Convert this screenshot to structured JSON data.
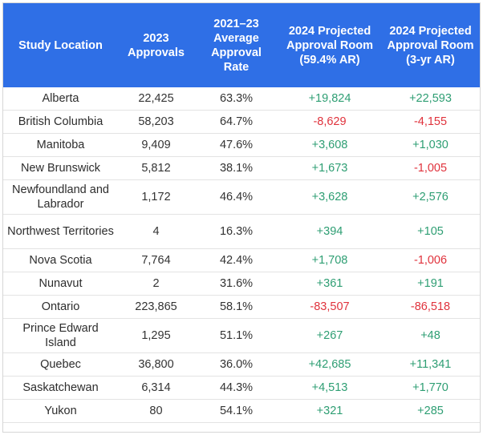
{
  "table": {
    "headers": [
      "Study Location",
      "2023 Approvals",
      "2021–23 Average Approval Rate",
      "2024 Projected Approval Room (59.4% AR)",
      "2024 Projected Approval Room (3-yr AR)"
    ],
    "rows": [
      {
        "location": "Alberta",
        "approvals": "22,425",
        "rate": "63.3%",
        "room_594": "+19,824",
        "room_3yr": "+22,593"
      },
      {
        "location": "British Columbia",
        "approvals": "58,203",
        "rate": "64.7%",
        "room_594": "-8,629",
        "room_3yr": "-4,155"
      },
      {
        "location": "Manitoba",
        "approvals": "9,409",
        "rate": "47.6%",
        "room_594": "+3,608",
        "room_3yr": "+1,030"
      },
      {
        "location": "New Brunswick",
        "approvals": "5,812",
        "rate": "38.1%",
        "room_594": "+1,673",
        "room_3yr": "-1,005"
      },
      {
        "location": "Newfoundland and Labrador",
        "approvals": "1,172",
        "rate": "46.4%",
        "room_594": "+3,628",
        "room_3yr": "+2,576"
      },
      {
        "location": "Northwest Territories",
        "approvals": "4",
        "rate": "16.3%",
        "room_594": "+394",
        "room_3yr": "+105"
      },
      {
        "location": "Nova Scotia",
        "approvals": "7,764",
        "rate": "42.4%",
        "room_594": "+1,708",
        "room_3yr": "-1,006"
      },
      {
        "location": "Nunavut",
        "approvals": "2",
        "rate": "31.6%",
        "room_594": "+361",
        "room_3yr": "+191"
      },
      {
        "location": "Ontario",
        "approvals": "223,865",
        "rate": "58.1%",
        "room_594": "-83,507",
        "room_3yr": "-86,518"
      },
      {
        "location": "Prince Edward Island",
        "approvals": "1,295",
        "rate": "51.1%",
        "room_594": "+267",
        "room_3yr": "+48"
      },
      {
        "location": "Quebec",
        "approvals": "36,800",
        "rate": "36.0%",
        "room_594": "+42,685",
        "room_3yr": "+11,341"
      },
      {
        "location": "Saskatchewan",
        "approvals": "6,314",
        "rate": "44.3%",
        "room_594": "+4,513",
        "room_3yr": "+1,770"
      },
      {
        "location": "Yukon",
        "approvals": "80",
        "rate": "54.1%",
        "room_594": "+321",
        "room_3yr": "+285"
      }
    ]
  },
  "colors": {
    "header_bg": "#2f6fe6",
    "header_text": "#ffffff",
    "positive": "#2e9e73",
    "negative": "#e0323c",
    "body_text": "#333333"
  }
}
